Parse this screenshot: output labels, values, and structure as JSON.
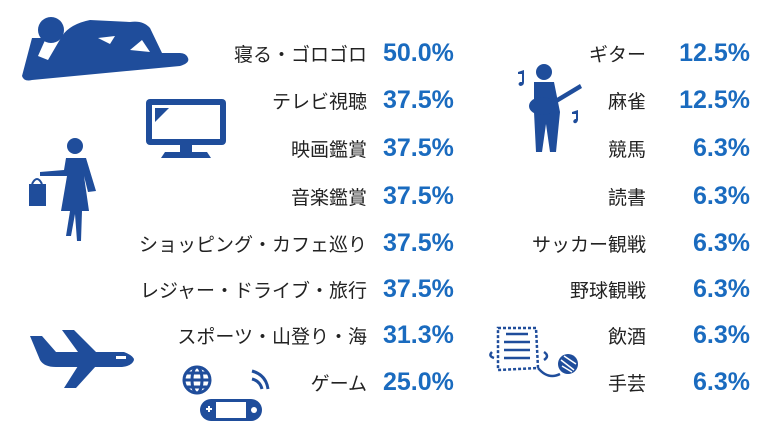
{
  "colors": {
    "icon": "#1f4d9b",
    "value": "#1a6bbf",
    "label": "#222222"
  },
  "left": [
    {
      "label": "寝る・ゴロゴロ",
      "value": "50.0%"
    },
    {
      "label": "テレビ視聴",
      "value": "37.5%"
    },
    {
      "label": "映画鑑賞",
      "value": "37.5%"
    },
    {
      "label": "音楽鑑賞",
      "value": "37.5%"
    },
    {
      "label": "ショッピング・カフェ巡り",
      "value": "37.5%"
    },
    {
      "label": "レジャー・ドライブ・旅行",
      "value": "37.5%"
    },
    {
      "label": "スポーツ・山登り・海",
      "value": "31.3%"
    },
    {
      "label": "ゲーム",
      "value": "25.0%"
    }
  ],
  "right": [
    {
      "label": "ギター",
      "value": "12.5%"
    },
    {
      "label": "麻雀",
      "value": "12.5%"
    },
    {
      "label": "競馬",
      "value": "6.3%"
    },
    {
      "label": "読書",
      "value": "6.3%"
    },
    {
      "label": "サッカー観戦",
      "value": "6.3%"
    },
    {
      "label": "野球観戦",
      "value": "6.3%"
    },
    {
      "label": "飲酒",
      "value": "6.3%"
    },
    {
      "label": "手芸",
      "value": "6.3%"
    }
  ]
}
